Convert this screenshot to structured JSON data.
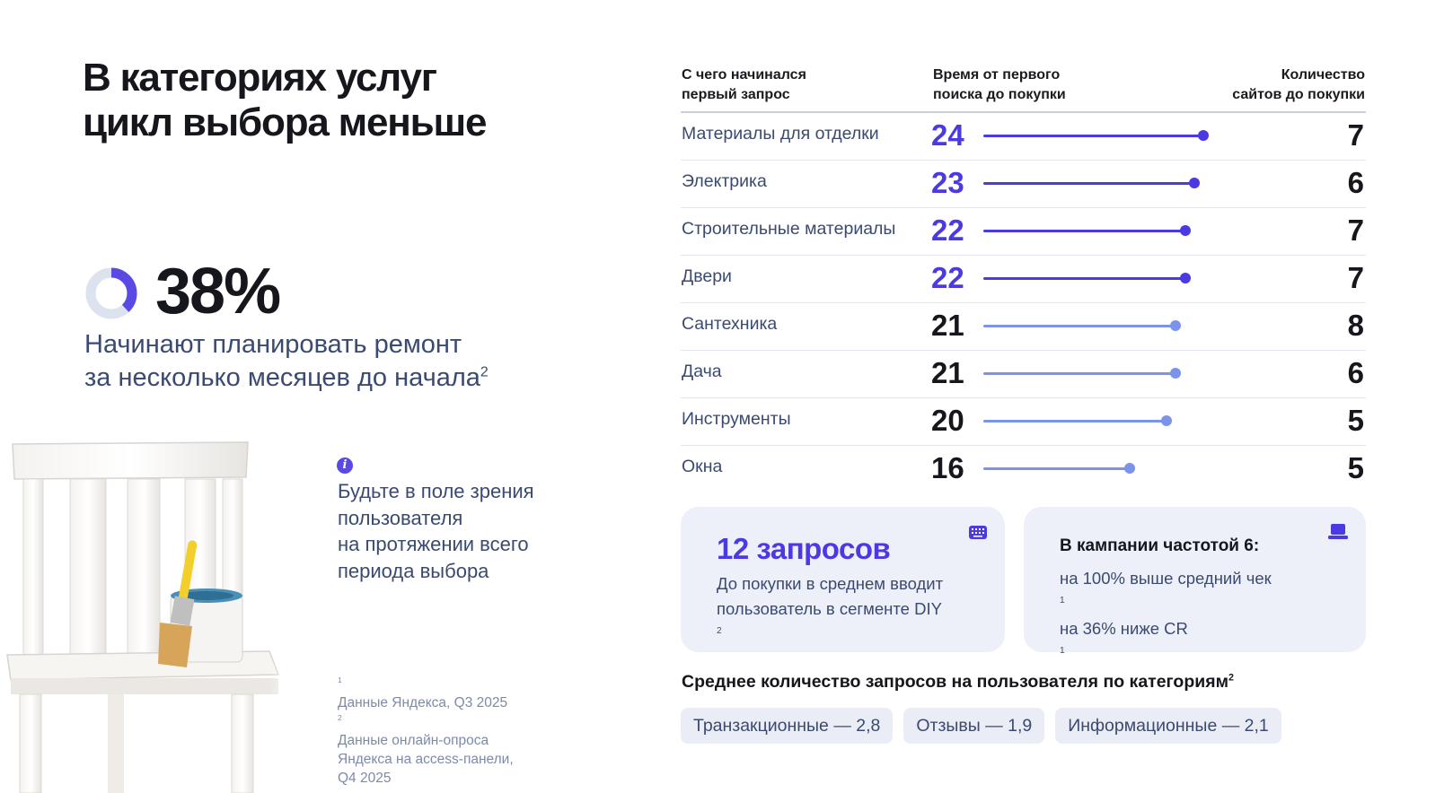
{
  "title": [
    "В категориях услуг",
    "цикл выбора меньше"
  ],
  "stat": {
    "value": "38%",
    "fraction": 0.38,
    "desc_line1": "Начинают планировать ремонт",
    "desc_line2": "за несколько месяцев до начала",
    "desc_sup": "2"
  },
  "tip": {
    "icon": "info-icon",
    "lines": [
      "Будьте в поле зрения",
      "пользователя",
      "на протяжении всего",
      "периода выбора"
    ]
  },
  "footnotes": {
    "f1_sup": "1",
    "f1": " Данные Яндекса, Q3 2025",
    "f2_sup": "2",
    "f2": " Данные онлайн-опроса",
    "f2_line2": "Яндекса на access-панели,",
    "f2_line3": "Q4 2025"
  },
  "chart_data": {
    "type": "bar",
    "headers": {
      "category": [
        "С чего начинался",
        "первый запрос"
      ],
      "time": [
        "Время от первого",
        "поиска до покупки"
      ],
      "sites": [
        "Количество",
        "сайтов до покупки"
      ]
    },
    "rows": [
      {
        "category": "Материалы для отделки",
        "time": 24,
        "sites": 7,
        "highlight": true
      },
      {
        "category": "Электрика",
        "time": 23,
        "sites": 6,
        "highlight": true
      },
      {
        "category": "Строительные материалы",
        "time": 22,
        "sites": 7,
        "highlight": true
      },
      {
        "category": "Двери",
        "time": 22,
        "sites": 7,
        "highlight": true
      },
      {
        "category": "Сантехника",
        "time": 21,
        "sites": 8,
        "highlight": false
      },
      {
        "category": "Дача",
        "time": 21,
        "sites": 6,
        "highlight": false
      },
      {
        "category": "Инструменты",
        "time": 20,
        "sites": 5,
        "highlight": false
      },
      {
        "category": "Окна",
        "time": 16,
        "sites": 5,
        "highlight": false
      }
    ],
    "colors": {
      "highlight": "#4b39e4",
      "normal": "#7b93e8",
      "text_highlight": "#4b39e4",
      "text_normal": "#16161d"
    }
  },
  "cards": {
    "queries": {
      "title": "12 запросов",
      "line1": "До покупки в среднем вводит",
      "line2": "пользователь в сегменте DIY",
      "line2_sup": "2",
      "icon": "keyboard-icon"
    },
    "campaign": {
      "title": "В кампании частотой 6:",
      "line1": "на 100% выше средний чек",
      "line1_sup": "1",
      "line2": "на 36% ниже CR",
      "line2_sup": "1",
      "icon": "laptop-icon"
    }
  },
  "pills_section": {
    "title": "Среднее количество запросов на пользователя по категориям",
    "title_sup": "2",
    "pills": [
      "Транзакционные — 2,8",
      "Отзывы — 1,9",
      "Информационные — 2,1"
    ]
  }
}
